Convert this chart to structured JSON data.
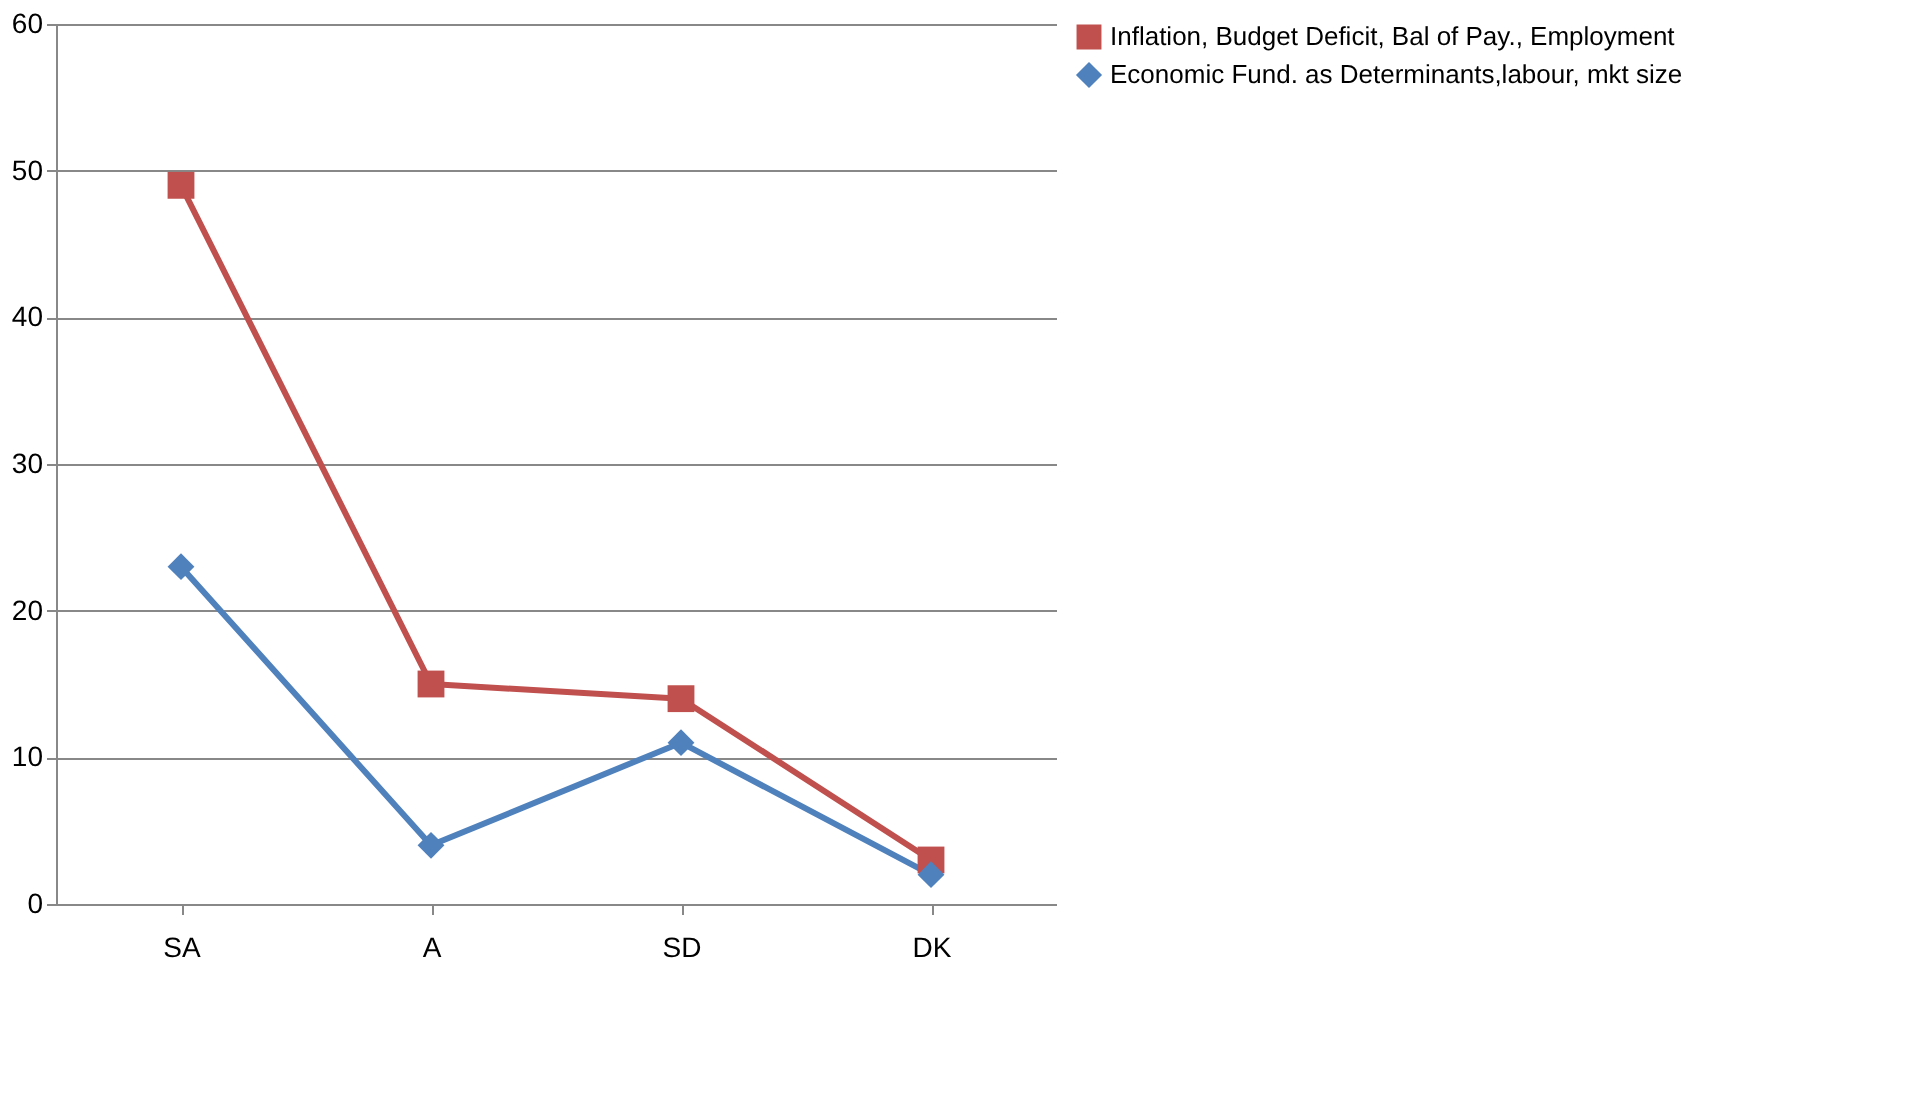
{
  "chart_data": {
    "type": "line",
    "categories": [
      "SA",
      "A",
      "SD",
      "DK"
    ],
    "series": [
      {
        "name": "Inflation, Budget Deficit, Bal of Pay., Employment",
        "color": "#c0504d",
        "marker": "square",
        "values": [
          49,
          15,
          14,
          3
        ]
      },
      {
        "name": "Economic Fund. as Determinants,labour, mkt size",
        "color": "#4f81bd",
        "marker": "diamond",
        "values": [
          23,
          4,
          11,
          2
        ]
      }
    ],
    "ylim": [
      0,
      60
    ],
    "yticks": [
      0,
      10,
      20,
      30,
      40,
      50,
      60
    ],
    "grid": "y",
    "legend": "right",
    "line_style": "solid"
  }
}
